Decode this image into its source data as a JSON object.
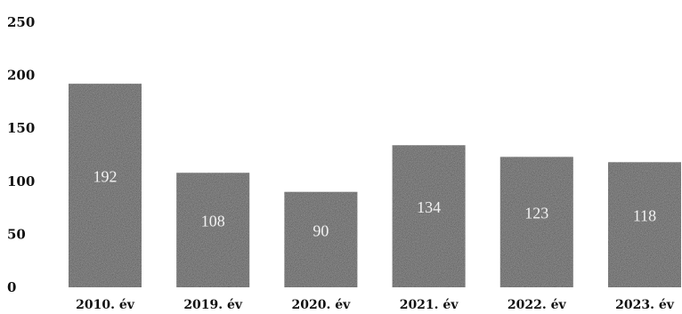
{
  "chart_data": {
    "type": "bar",
    "title": "",
    "xlabel": "",
    "ylabel": "",
    "categories": [
      "2010. év",
      "2019. év",
      "2020. év",
      "2021. év",
      "2022. év",
      "2023. év"
    ],
    "values": [
      192,
      108,
      90,
      134,
      123,
      118
    ],
    "ylim": [
      0,
      250
    ],
    "yticks": [
      0,
      50,
      100,
      150,
      200,
      250
    ],
    "grid": false,
    "legend": "none",
    "bar_color": "#2e2e2e",
    "data_label_color": "#f2f2f2"
  }
}
